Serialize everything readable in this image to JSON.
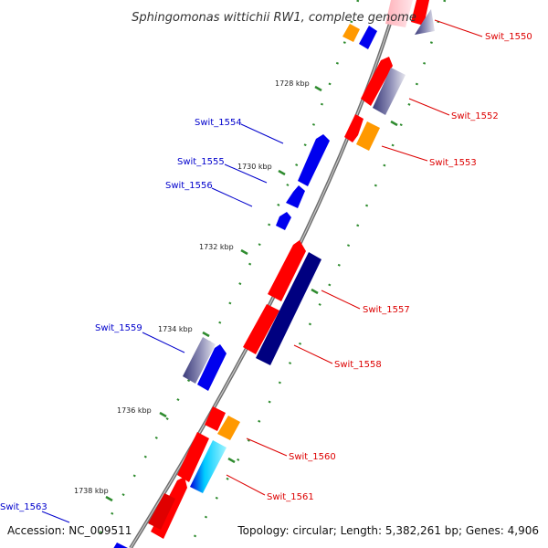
{
  "title": "Sphingomonas wittichii RW1, complete genome",
  "accession": "Accession: NC_009511",
  "topology": "Topology: circular; Length: 5,382,261 bp; Genes: 4,906",
  "colors": {
    "forward_red": "#ff0000",
    "reverse_blue": "#0000ee",
    "dark_navy": "#000080",
    "orange": "#ff9900",
    "slate": "#5a5a8e",
    "cyan": "#00e0ff",
    "backbone": "#8c8c8c",
    "tick_green": "#2e8b2e",
    "label_red": "#dd0000",
    "label_blue": "#0000cc"
  },
  "kbp_ticks": [
    "1728 kbp",
    "1730 kbp",
    "1732 kbp",
    "1734 kbp",
    "1736 kbp",
    "1738 kbp"
  ],
  "gene_labels": {
    "swit_1550": "Swit_1550",
    "swit_1552": "Swit_1552",
    "swit_1553": "Swit_1553",
    "swit_1554": "Swit_1554",
    "swit_1555": "Swit_1555",
    "swit_1556": "Swit_1556",
    "swit_1557": "Swit_1557",
    "swit_1558": "Swit_1558",
    "swit_1559": "Swit_1559",
    "swit_1560": "Swit_1560",
    "swit_1561": "Swit_1561",
    "swit_1563": "Swit_1563"
  }
}
